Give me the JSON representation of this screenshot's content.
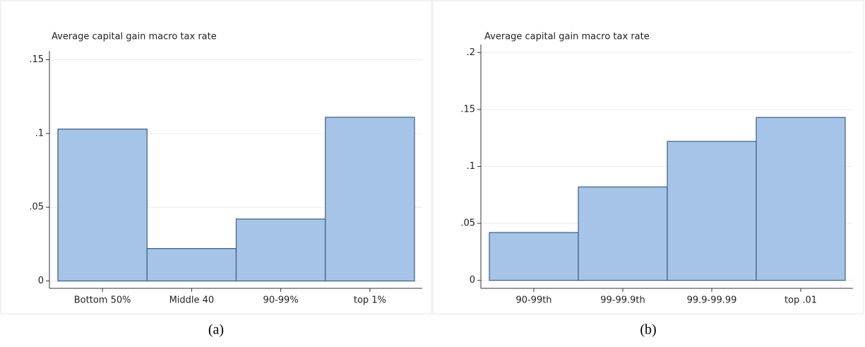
{
  "chart_data": [
    {
      "type": "bar",
      "title": "Average capital gain macro tax rate",
      "caption": "(a)",
      "categories": [
        "Bottom 50%",
        "Middle 40",
        "90-99%",
        "top 1%"
      ],
      "values": [
        0.103,
        0.022,
        0.042,
        0.111
      ],
      "color": "#a6c3e8",
      "ylim": [
        -0.005,
        0.156
      ],
      "yticks": [
        0,
        {
          "value": 0.05,
          "label": ".05"
        },
        {
          "value": 0.1,
          "label": ".1"
        },
        {
          "value": 0.15,
          "label": ".15"
        }
      ],
      "grid": true
    },
    {
      "type": "bar",
      "title": "Average capital gain macro tax rate",
      "caption": "(b)",
      "categories": [
        "90-99th",
        "99-99.9th",
        "99.9-99.99",
        "top .01"
      ],
      "values": [
        0.042,
        0.082,
        0.122,
        0.143
      ],
      "color": "#a6c3e8",
      "ylim": [
        -0.007,
        0.207
      ],
      "yticks": [
        0,
        {
          "value": 0.05,
          "label": ".05"
        },
        {
          "value": 0.1,
          "label": ".1"
        },
        {
          "value": 0.15,
          "label": ".15"
        },
        {
          "value": 0.2,
          "label": ".2"
        }
      ],
      "grid": true
    }
  ]
}
